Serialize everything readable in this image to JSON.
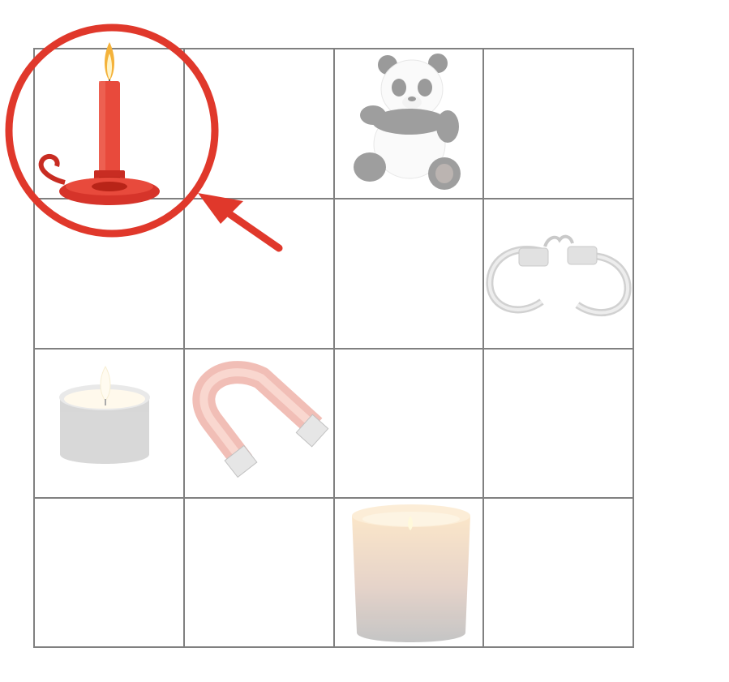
{
  "grid": {
    "rows": 4,
    "cols": 4,
    "line_color": "#808080",
    "items": [
      {
        "row": 0,
        "col": 0,
        "name": "candlestick-icon",
        "highlighted": true
      },
      {
        "row": 0,
        "col": 2,
        "name": "panda-plush-icon",
        "highlighted": false
      },
      {
        "row": 1,
        "col": 3,
        "name": "handcuffs-icon",
        "highlighted": false
      },
      {
        "row": 2,
        "col": 0,
        "name": "tealight-candle-icon",
        "highlighted": false
      },
      {
        "row": 2,
        "col": 1,
        "name": "horseshoe-magnet-icon",
        "highlighted": false
      },
      {
        "row": 3,
        "col": 2,
        "name": "pillar-candle-icon",
        "highlighted": false
      }
    ]
  },
  "highlight": {
    "color": "#e0382b",
    "shape": "circle-with-arrow",
    "target": "candlestick-icon"
  }
}
